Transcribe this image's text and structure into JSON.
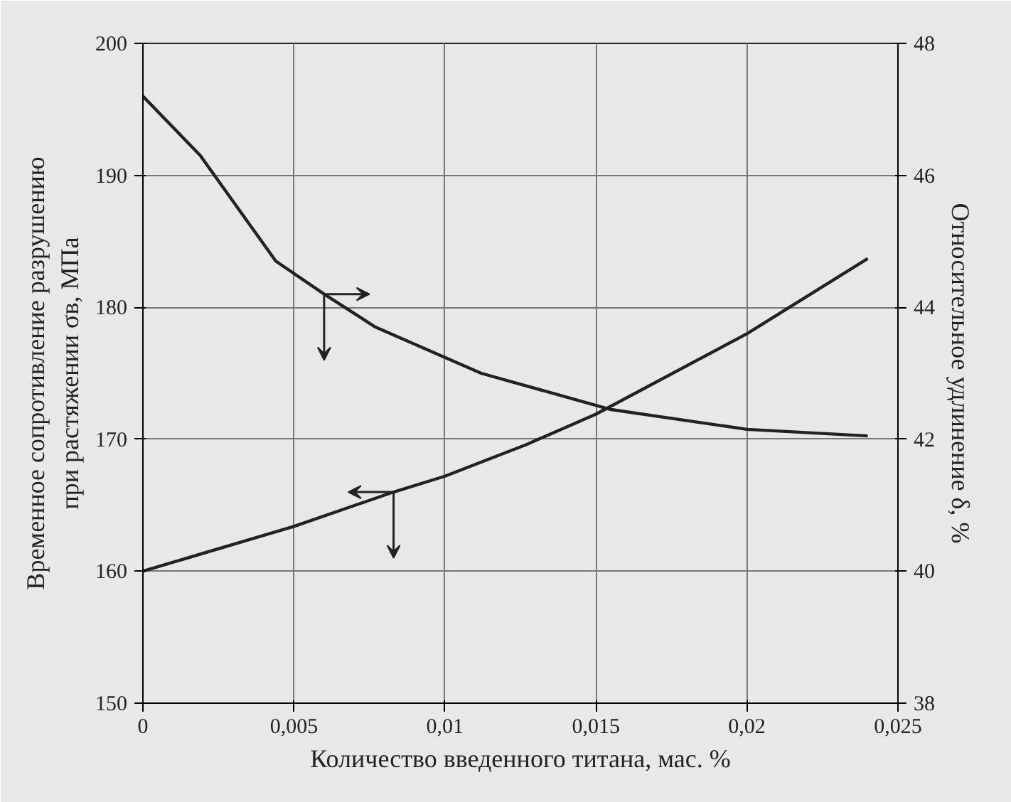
{
  "chart_data": {
    "type": "line",
    "xlabel": "Количество введенного титана, мас. %",
    "ylabel": "Временное сопротивление разрушению\nпри растяжении σв, МПа",
    "y2label": "Относительное удлинение δ, %",
    "xlim": [
      0,
      0.025
    ],
    "xticks": [
      0,
      {
        "value": 0.005,
        "label": "0,005"
      },
      {
        "value": 0.01,
        "label": "0,01"
      },
      {
        "value": 0.015,
        "label": "0,015"
      },
      {
        "value": 0.02,
        "label": "0,02"
      },
      {
        "value": 0.025,
        "label": "0,025"
      }
    ],
    "ylim": [
      150,
      200
    ],
    "yticks": [
      150,
      160,
      170,
      180,
      190,
      200
    ],
    "y2lim": [
      38,
      48
    ],
    "y2ticks": [
      38,
      40,
      42,
      44,
      46,
      48
    ],
    "grid": true,
    "marker": "none",
    "line_style": "solid",
    "series": [
      {
        "color": "#222222",
        "axis": "y2",
        "x": [
          0,
          0.0019,
          0.0044,
          0.006,
          0.0077,
          0.0112,
          0.0155,
          0.02,
          0.024
        ],
        "values": [
          47.2,
          46.3,
          44.7,
          44.2,
          43.7,
          43.0,
          42.45,
          42.15,
          42.05
        ]
      },
      {
        "color": "#222222",
        "x": [
          0,
          0.005,
          0.0083,
          0.01,
          0.0127,
          0.015,
          0.02,
          0.024
        ],
        "values": [
          160,
          163.4,
          166.0,
          167.2,
          169.6,
          171.9,
          178.0,
          183.7
        ]
      }
    ]
  }
}
